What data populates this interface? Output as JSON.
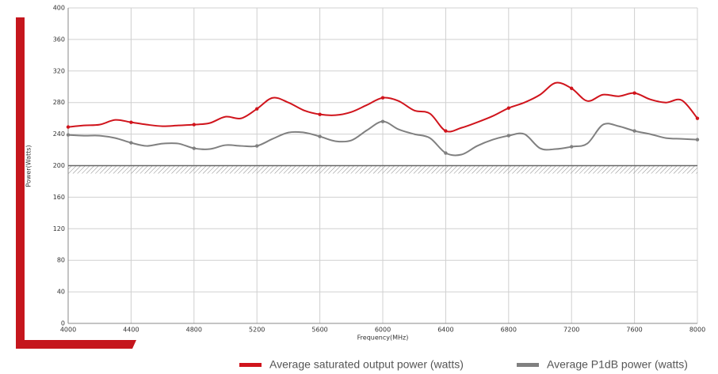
{
  "chart_data": {
    "type": "line",
    "ylabel": "Power(Watts)",
    "xlabel": "Frequency(MHz)",
    "xlim": [
      4000,
      8000
    ],
    "xticks": [
      4000,
      4400,
      4800,
      5200,
      5600,
      6000,
      6400,
      6800,
      7200,
      7600,
      8000
    ],
    "ylim": [
      0,
      400
    ],
    "yticks": [
      0,
      40,
      80,
      120,
      160,
      200,
      240,
      280,
      320,
      360,
      400
    ],
    "grid": true,
    "legend": "bottom-right",
    "band": [
      190,
      200
    ],
    "x": [
      4000,
      4100,
      4200,
      4300,
      4400,
      4500,
      4600,
      4700,
      4800,
      4900,
      5000,
      5100,
      5200,
      5300,
      5400,
      5500,
      5600,
      5700,
      5800,
      5900,
      6000,
      6100,
      6200,
      6300,
      6400,
      6500,
      6600,
      6700,
      6800,
      6900,
      7000,
      7100,
      7200,
      7300,
      7400,
      7500,
      7600,
      7700,
      7800,
      7900,
      8000
    ],
    "series": [
      {
        "name": "Average saturated output power (watts)",
        "color": "#d0141c",
        "values": [
          249,
          251,
          252,
          258,
          255,
          252,
          250,
          251,
          252,
          254,
          262,
          260,
          272,
          286,
          280,
          270,
          265,
          264,
          268,
          277,
          286,
          282,
          270,
          266,
          244,
          248,
          255,
          263,
          273,
          280,
          290,
          305,
          298,
          282,
          290,
          288,
          292,
          284,
          280,
          283,
          260
        ]
      },
      {
        "name": "Average P1dB power (watts)",
        "color": "#808080",
        "values": [
          239,
          238,
          238,
          235,
          229,
          225,
          228,
          228,
          222,
          221,
          226,
          225,
          225,
          234,
          242,
          242,
          237,
          231,
          232,
          245,
          256,
          246,
          240,
          235,
          216,
          214,
          225,
          233,
          238,
          240,
          222,
          221,
          224,
          228,
          252,
          250,
          244,
          240,
          235,
          234,
          233
        ]
      }
    ]
  }
}
